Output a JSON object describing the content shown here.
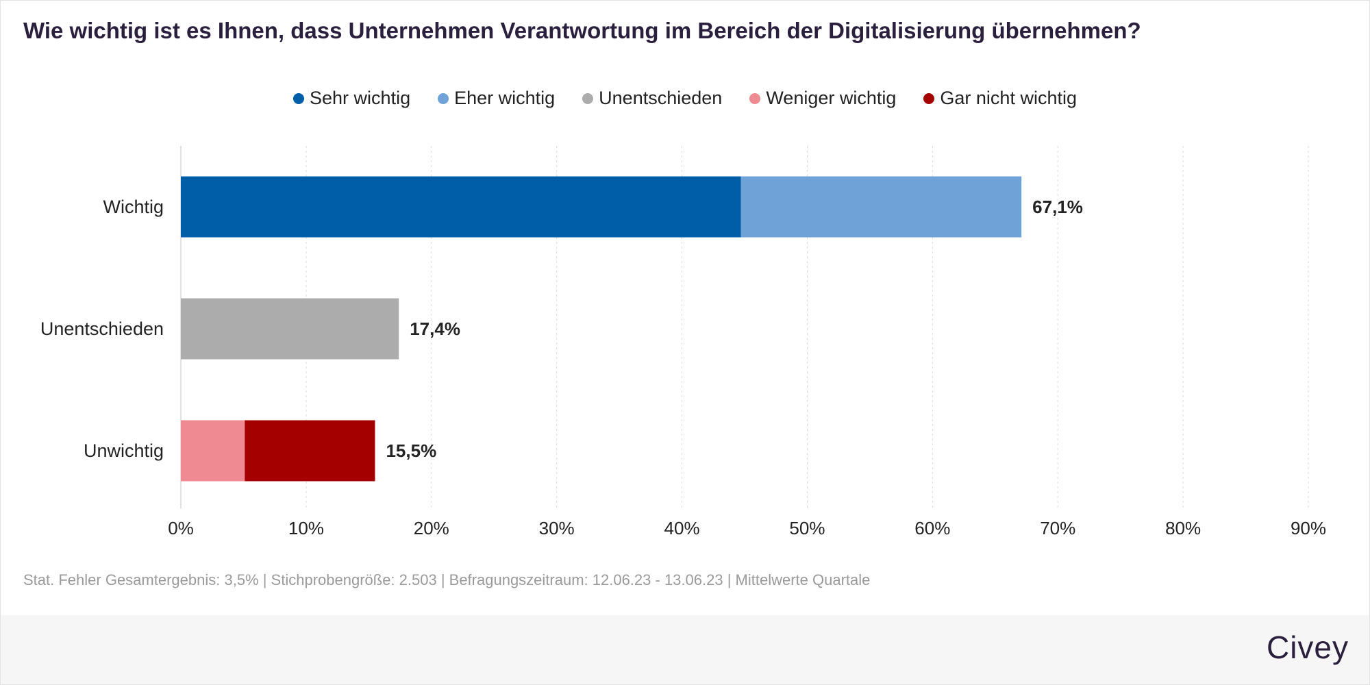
{
  "title": "Wie wichtig ist es Ihnen, dass Unternehmen Verantwortung im Bereich der Digitalisierung übernehmen?",
  "legend": [
    {
      "label": "Sehr wichtig",
      "color": "#005da8"
    },
    {
      "label": "Eher wichtig",
      "color": "#6fa3d8"
    },
    {
      "label": "Unentschieden",
      "color": "#acacac"
    },
    {
      "label": "Weniger wichtig",
      "color": "#f08a92"
    },
    {
      "label": "Gar nicht wichtig",
      "color": "#a50000"
    }
  ],
  "footnote": "Stat. Fehler Gesamtergebnis: 3,5% | Stichprobengröße: 2.503 | Befragungszeitraum: 12.06.23 - 13.06.23 | Mittelwerte Quartale",
  "brand": "Civey",
  "chart_data": {
    "type": "bar",
    "orientation": "horizontal",
    "stacked": true,
    "categories": [
      "Wichtig",
      "Unentschieden",
      "Unwichtig"
    ],
    "series": [
      {
        "name": "Sehr wichtig",
        "color": "#005da8",
        "values": [
          44.7,
          0,
          0
        ]
      },
      {
        "name": "Eher wichtig",
        "color": "#6fa3d8",
        "values": [
          22.4,
          0,
          0
        ]
      },
      {
        "name": "Unentschieden",
        "color": "#acacac",
        "values": [
          0,
          17.4,
          0
        ]
      },
      {
        "name": "Weniger wichtig",
        "color": "#f08a92",
        "values": [
          0,
          0,
          5.1
        ]
      },
      {
        "name": "Gar nicht wichtig",
        "color": "#a50000",
        "values": [
          0,
          0,
          10.4
        ]
      }
    ],
    "totals": [
      67.1,
      17.4,
      15.5
    ],
    "total_labels": [
      "67,1%",
      "17,4%",
      "15,5%"
    ],
    "xlim": [
      0,
      90
    ],
    "xticks": [
      0,
      10,
      20,
      30,
      40,
      50,
      60,
      70,
      80,
      90
    ],
    "xtick_labels": [
      "0%",
      "10%",
      "20%",
      "30%",
      "40%",
      "50%",
      "60%",
      "70%",
      "80%",
      "90%"
    ],
    "grid": true,
    "legend_position": "top-center"
  }
}
